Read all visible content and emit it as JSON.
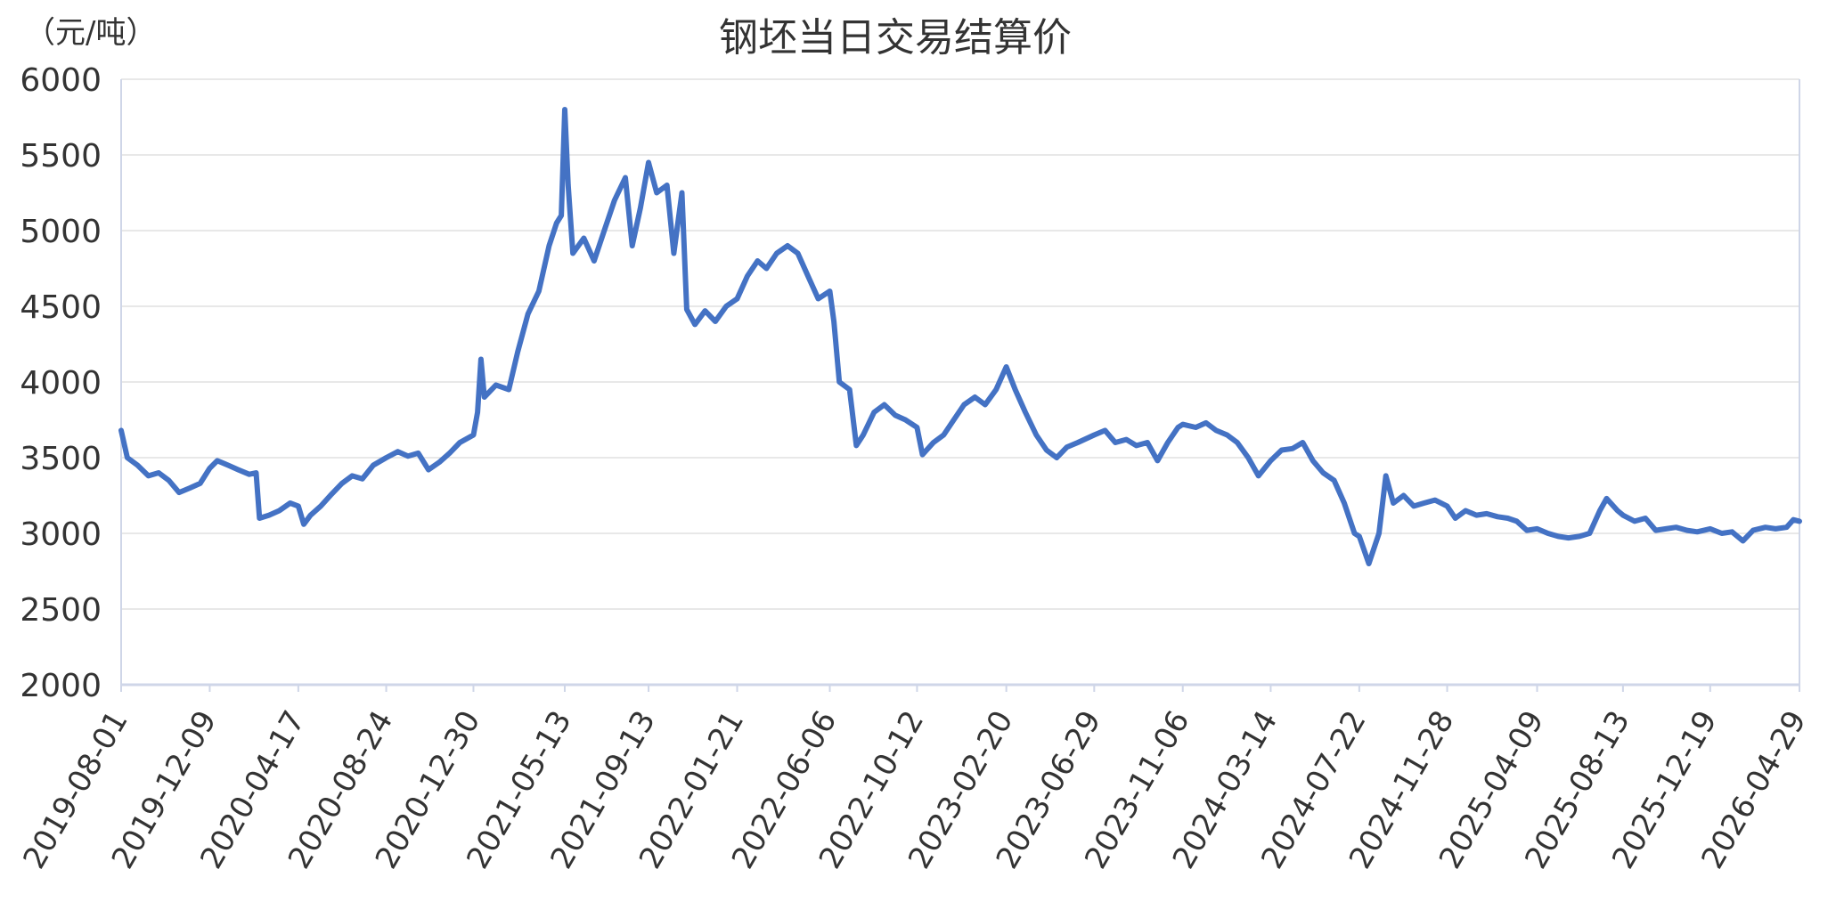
{
  "chart_data": {
    "type": "line",
    "title": "钢坯当日交易结算价",
    "ylabel": "（元/吨）",
    "ylim": [
      2000,
      6000
    ],
    "yticks": [
      2000,
      2500,
      3000,
      3500,
      4000,
      4500,
      5000,
      5500,
      6000
    ],
    "xticks": [
      "2019-08-01",
      "2019-12-09",
      "2020-04-17",
      "2020-08-24",
      "2020-12-30",
      "2021-05-13",
      "2021-09-13",
      "2022-01-21",
      "2022-06-06",
      "2022-10-12",
      "2023-02-20",
      "2023-06-29",
      "2023-11-06",
      "2024-03-14",
      "2024-07-22",
      "2024-11-28",
      "2025-04-09",
      "2025-08-13",
      "2025-12-19",
      "2026-04-29"
    ],
    "xlim": [
      "2019-08-01",
      "2026-04-29"
    ],
    "grid": true,
    "series": [
      {
        "color": "#4472c4",
        "points": [
          [
            "2019-08-01",
            3680
          ],
          [
            "2019-08-10",
            3500
          ],
          [
            "2019-08-25",
            3450
          ],
          [
            "2019-09-10",
            3380
          ],
          [
            "2019-09-25",
            3400
          ],
          [
            "2019-10-10",
            3350
          ],
          [
            "2019-10-25",
            3270
          ],
          [
            "2019-11-10",
            3300
          ],
          [
            "2019-11-25",
            3330
          ],
          [
            "2019-12-09",
            3430
          ],
          [
            "2019-12-20",
            3480
          ],
          [
            "2020-01-05",
            3450
          ],
          [
            "2020-01-20",
            3420
          ],
          [
            "2020-02-05",
            3390
          ],
          [
            "2020-02-15",
            3400
          ],
          [
            "2020-02-20",
            3100
          ],
          [
            "2020-03-05",
            3120
          ],
          [
            "2020-03-20",
            3150
          ],
          [
            "2020-04-05",
            3200
          ],
          [
            "2020-04-17",
            3180
          ],
          [
            "2020-04-25",
            3060
          ],
          [
            "2020-05-05",
            3120
          ],
          [
            "2020-05-20",
            3180
          ],
          [
            "2020-06-05",
            3260
          ],
          [
            "2020-06-20",
            3330
          ],
          [
            "2020-07-05",
            3380
          ],
          [
            "2020-07-20",
            3360
          ],
          [
            "2020-08-05",
            3450
          ],
          [
            "2020-08-24",
            3500
          ],
          [
            "2020-09-10",
            3540
          ],
          [
            "2020-09-25",
            3510
          ],
          [
            "2020-10-10",
            3530
          ],
          [
            "2020-10-25",
            3420
          ],
          [
            "2020-11-10",
            3470
          ],
          [
            "2020-11-25",
            3530
          ],
          [
            "2020-12-10",
            3600
          ],
          [
            "2020-12-30",
            3650
          ],
          [
            "2021-01-05",
            3800
          ],
          [
            "2021-01-10",
            4150
          ],
          [
            "2021-01-15",
            3900
          ],
          [
            "2021-02-01",
            3980
          ],
          [
            "2021-02-20",
            3950
          ],
          [
            "2021-03-05",
            4200
          ],
          [
            "2021-03-20",
            4450
          ],
          [
            "2021-04-05",
            4600
          ],
          [
            "2021-04-20",
            4900
          ],
          [
            "2021-05-01",
            5050
          ],
          [
            "2021-05-08",
            5100
          ],
          [
            "2021-05-13",
            5800
          ],
          [
            "2021-05-18",
            5300
          ],
          [
            "2021-05-25",
            4850
          ],
          [
            "2021-06-10",
            4950
          ],
          [
            "2021-06-25",
            4800
          ],
          [
            "2021-07-10",
            5000
          ],
          [
            "2021-07-25",
            5200
          ],
          [
            "2021-08-10",
            5350
          ],
          [
            "2021-08-20",
            4900
          ],
          [
            "2021-09-01",
            5150
          ],
          [
            "2021-09-13",
            5450
          ],
          [
            "2021-09-25",
            5250
          ],
          [
            "2021-10-10",
            5300
          ],
          [
            "2021-10-20",
            4850
          ],
          [
            "2021-11-01",
            5250
          ],
          [
            "2021-11-08",
            4480
          ],
          [
            "2021-11-20",
            4380
          ],
          [
            "2021-12-05",
            4470
          ],
          [
            "2021-12-20",
            4400
          ],
          [
            "2022-01-05",
            4500
          ],
          [
            "2022-01-21",
            4550
          ],
          [
            "2022-02-05",
            4700
          ],
          [
            "2022-02-20",
            4800
          ],
          [
            "2022-03-05",
            4750
          ],
          [
            "2022-03-20",
            4850
          ],
          [
            "2022-04-05",
            4900
          ],
          [
            "2022-04-20",
            4850
          ],
          [
            "2022-05-05",
            4700
          ],
          [
            "2022-05-20",
            4550
          ],
          [
            "2022-06-06",
            4600
          ],
          [
            "2022-06-12",
            4400
          ],
          [
            "2022-06-20",
            4000
          ],
          [
            "2022-07-05",
            3950
          ],
          [
            "2022-07-15",
            3580
          ],
          [
            "2022-07-25",
            3650
          ],
          [
            "2022-08-10",
            3800
          ],
          [
            "2022-08-25",
            3850
          ],
          [
            "2022-09-10",
            3780
          ],
          [
            "2022-09-25",
            3750
          ],
          [
            "2022-10-12",
            3700
          ],
          [
            "2022-10-20",
            3520
          ],
          [
            "2022-11-05",
            3600
          ],
          [
            "2022-11-20",
            3650
          ],
          [
            "2022-12-05",
            3750
          ],
          [
            "2022-12-20",
            3850
          ],
          [
            "2023-01-05",
            3900
          ],
          [
            "2023-01-20",
            3850
          ],
          [
            "2023-02-05",
            3950
          ],
          [
            "2023-02-20",
            4100
          ],
          [
            "2023-03-05",
            3950
          ],
          [
            "2023-03-20",
            3800
          ],
          [
            "2023-04-05",
            3650
          ],
          [
            "2023-04-20",
            3550
          ],
          [
            "2023-05-05",
            3500
          ],
          [
            "2023-05-20",
            3570
          ],
          [
            "2023-06-05",
            3600
          ],
          [
            "2023-06-29",
            3650
          ],
          [
            "2023-07-15",
            3680
          ],
          [
            "2023-07-30",
            3600
          ],
          [
            "2023-08-15",
            3620
          ],
          [
            "2023-08-30",
            3580
          ],
          [
            "2023-09-15",
            3600
          ],
          [
            "2023-09-30",
            3480
          ],
          [
            "2023-10-15",
            3600
          ],
          [
            "2023-10-30",
            3700
          ],
          [
            "2023-11-06",
            3720
          ],
          [
            "2023-11-25",
            3700
          ],
          [
            "2023-12-10",
            3730
          ],
          [
            "2023-12-25",
            3680
          ],
          [
            "2024-01-10",
            3650
          ],
          [
            "2024-01-25",
            3600
          ],
          [
            "2024-02-10",
            3500
          ],
          [
            "2024-02-25",
            3380
          ],
          [
            "2024-03-14",
            3480
          ],
          [
            "2024-03-30",
            3550
          ],
          [
            "2024-04-15",
            3560
          ],
          [
            "2024-04-30",
            3600
          ],
          [
            "2024-05-15",
            3480
          ],
          [
            "2024-05-30",
            3400
          ],
          [
            "2024-06-15",
            3350
          ],
          [
            "2024-06-30",
            3200
          ],
          [
            "2024-07-15",
            3000
          ],
          [
            "2024-07-22",
            2980
          ],
          [
            "2024-08-05",
            2800
          ],
          [
            "2024-08-20",
            3000
          ],
          [
            "2024-08-30",
            3380
          ],
          [
            "2024-09-10",
            3200
          ],
          [
            "2024-09-25",
            3250
          ],
          [
            "2024-10-10",
            3180
          ],
          [
            "2024-10-25",
            3200
          ],
          [
            "2024-11-10",
            3220
          ],
          [
            "2024-11-28",
            3180
          ],
          [
            "2024-12-10",
            3100
          ],
          [
            "2024-12-25",
            3150
          ],
          [
            "2025-01-10",
            3120
          ],
          [
            "2025-01-25",
            3130
          ],
          [
            "2025-02-10",
            3110
          ],
          [
            "2025-02-25",
            3100
          ],
          [
            "2025-03-10",
            3080
          ],
          [
            "2025-03-25",
            3020
          ],
          [
            "2025-04-09",
            3030
          ],
          [
            "2025-04-25",
            3000
          ],
          [
            "2025-05-10",
            2980
          ],
          [
            "2025-05-25",
            2970
          ],
          [
            "2025-06-10",
            2980
          ],
          [
            "2025-06-25",
            3000
          ],
          [
            "2025-07-10",
            3150
          ],
          [
            "2025-07-20",
            3230
          ],
          [
            "2025-08-05",
            3150
          ],
          [
            "2025-08-13",
            3120
          ],
          [
            "2025-08-30",
            3080
          ],
          [
            "2025-09-15",
            3100
          ],
          [
            "2025-09-30",
            3020
          ],
          [
            "2025-10-15",
            3030
          ],
          [
            "2025-10-30",
            3040
          ],
          [
            "2025-11-15",
            3020
          ],
          [
            "2025-11-30",
            3010
          ],
          [
            "2025-12-19",
            3030
          ],
          [
            "2026-01-05",
            3000
          ],
          [
            "2026-01-20",
            3010
          ],
          [
            "2026-02-05",
            2950
          ],
          [
            "2026-02-20",
            3020
          ],
          [
            "2026-03-10",
            3040
          ],
          [
            "2026-03-25",
            3030
          ],
          [
            "2026-04-10",
            3040
          ],
          [
            "2026-04-20",
            3090
          ],
          [
            "2026-04-29",
            3080
          ]
        ]
      }
    ]
  }
}
